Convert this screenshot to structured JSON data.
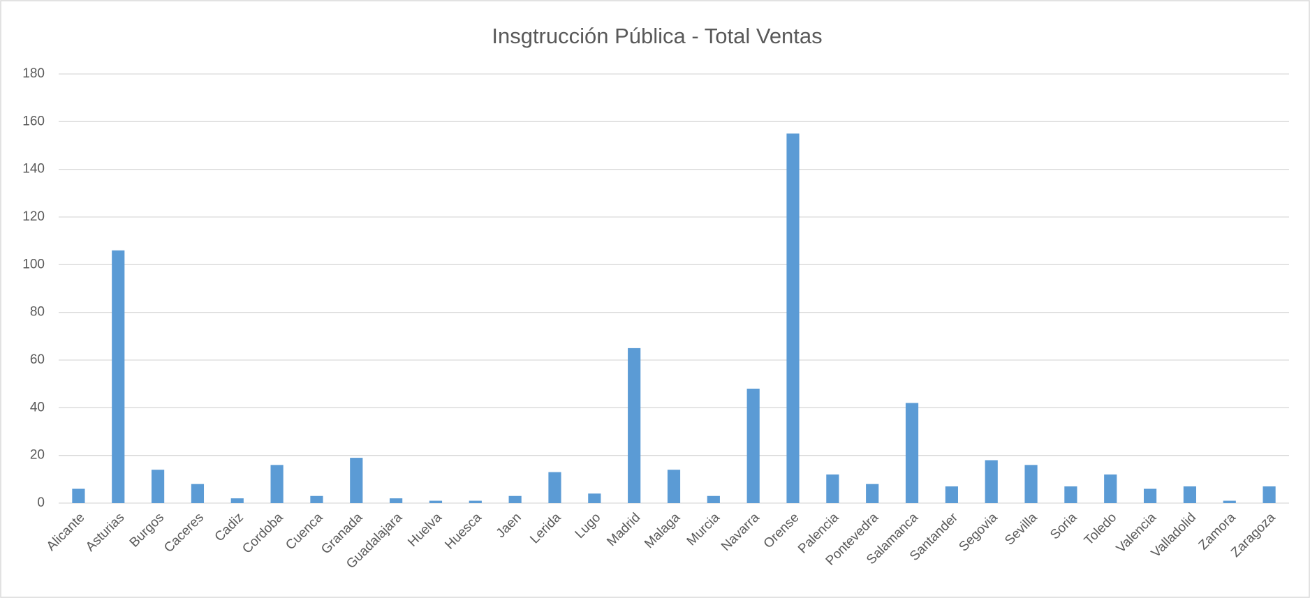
{
  "chart_data": {
    "type": "bar",
    "title": "Insgtrucción Pública - Total Ventas",
    "categories": [
      "Alicante",
      "Asturias",
      "Burgos",
      "Caceres",
      "Cadiz",
      "Cordoba",
      "Cuenca",
      "Granada",
      "Guadalajara",
      "Huelva",
      "Huesca",
      "Jaen",
      "Lerida",
      "Lugo",
      "Madrid",
      "Malaga",
      "Murcia",
      "Navarra",
      "Orense",
      "Palencia",
      "Pontevedra",
      "Salamanca",
      "Santander",
      "Segovia",
      "Sevilla",
      "Soria",
      "Toledo",
      "Valencia",
      "Valladolid",
      "Zamora",
      "Zaragoza"
    ],
    "values": [
      6,
      106,
      14,
      8,
      2,
      16,
      3,
      19,
      2,
      1,
      1,
      3,
      13,
      4,
      65,
      14,
      3,
      48,
      155,
      12,
      8,
      42,
      7,
      18,
      16,
      7,
      12,
      6,
      7,
      1,
      7
    ],
    "color": "#5b9bd5",
    "ylim": [
      0,
      180
    ],
    "yticks": [
      0,
      20,
      40,
      60,
      80,
      100,
      120,
      140,
      160,
      180
    ],
    "grid": true
  }
}
